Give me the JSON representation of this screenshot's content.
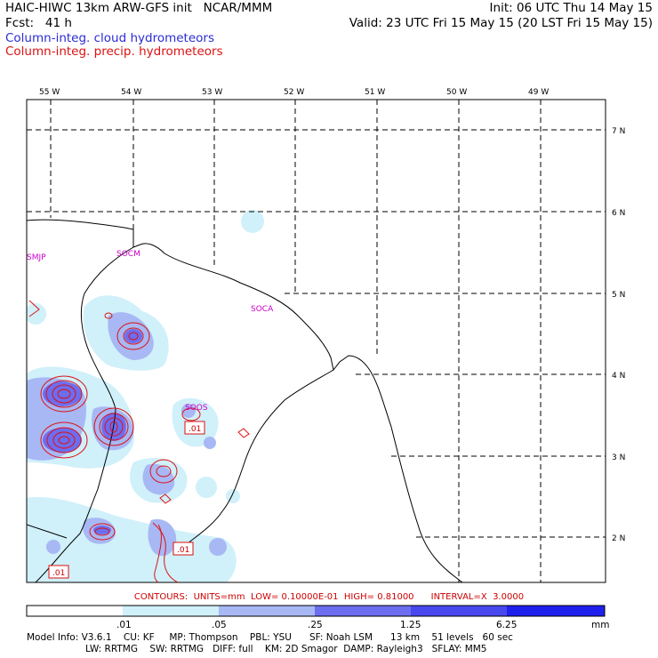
{
  "header": {
    "line1_left": "HAIC-HIWC 13km ARW-GFS init   NCAR/MMM",
    "line1_right": "Init: 06 UTC Thu 14 May 15",
    "line2_left": "Fcst:   41 h",
    "line2_right": "Valid: 23 UTC Fri 15 May 15 (20 LST Fri 15 May 15)",
    "field1": "Column-integ. cloud hydrometeors",
    "field2": "Column-integ. precip. hydrometeors",
    "field1_color": "#2b2bd6",
    "field2_color": "#dd1111"
  },
  "map": {
    "lon_labels": [
      "55 W",
      "54 W",
      "53 W",
      "52 W",
      "51 W",
      "50 W",
      "49 W"
    ],
    "lat_labels": [
      "7 N",
      "6 N",
      "5 N",
      "4 N",
      "3 N",
      "2 N"
    ],
    "stations": [
      "SMJP",
      "SOCM",
      "SOCA",
      "SOOS"
    ],
    "contour_labels": [
      ".01",
      ".01",
      ".01"
    ],
    "colors": {
      "coast": "#000000",
      "grid": "#000000",
      "precip": "#dd1111",
      "station": "#cc00cc"
    }
  },
  "contours_info": "CONTOURS:  UNITS=mm  LOW= 0.10000E-01  HIGH= 0.81000      INTERVAL=X  3.0000",
  "colorbar": {
    "labels": [
      ".01",
      ".05",
      ".25",
      "1.25",
      "6.25"
    ],
    "unit": "mm",
    "colors": [
      "#ffffff",
      "#d0f0fa",
      "#a8b8f4",
      "#6d6df0",
      "#2020ee"
    ]
  },
  "footer": {
    "line1": "Model Info: V3.6.1    CU: KF     MP: Thompson    PBL: YSU      SF: Noah LSM      13 km    51 levels   60 sec",
    "line2": "LW: RRTMG    SW: RRTMG   DIFF: full    KM: 2D Smagor  DAMP: Rayleigh3   SFLAY: MM5"
  }
}
